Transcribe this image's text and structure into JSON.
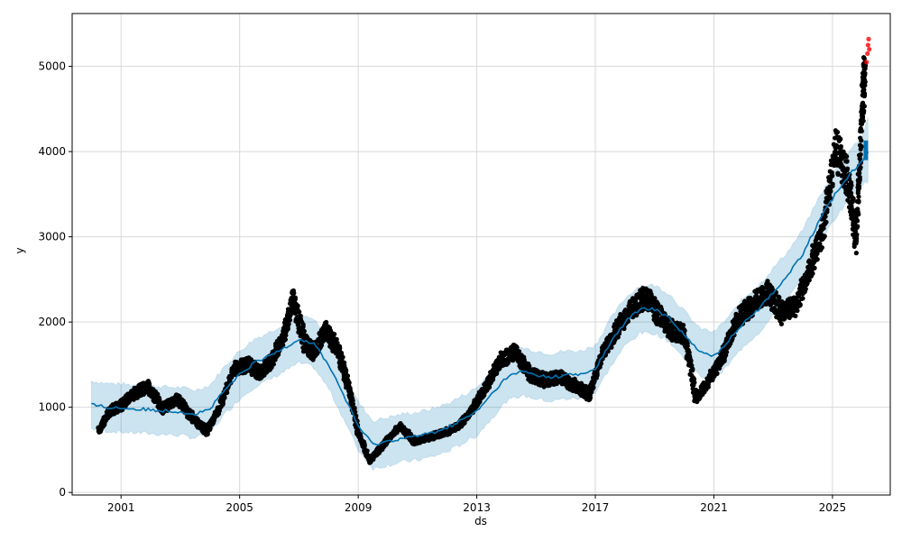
{
  "chart_data": {
    "type": "line",
    "title": "",
    "xlabel": "ds",
    "ylabel": "y",
    "xlim": [
      1999.35,
      2026.95
    ],
    "ylim": [
      -30,
      5620
    ],
    "x_ticks": [
      2001,
      2005,
      2009,
      2013,
      2017,
      2021,
      2025
    ],
    "x_tick_labels": [
      "2001",
      "2005",
      "2009",
      "2013",
      "2017",
      "2021",
      "2025"
    ],
    "y_ticks": [
      0,
      1000,
      2000,
      3000,
      4000,
      5000
    ],
    "y_tick_labels": [
      "0",
      "1000",
      "2000",
      "3000",
      "4000",
      "5000"
    ],
    "grid": true,
    "colors": {
      "observed": "#000000",
      "outliers": "#ff0000",
      "forecast": "#0072b2",
      "uncertainty": "#0072b2",
      "grid": "#d9d9d9"
    },
    "observed_series": {
      "name": "",
      "x": [
        2000.25,
        2000.6,
        2001.0,
        2001.4,
        2001.9,
        2002.4,
        2002.9,
        2003.4,
        2003.9,
        2004.3,
        2004.8,
        2005.3,
        2005.7,
        2006.1,
        2006.5,
        2006.8,
        2007.2,
        2007.5,
        2007.9,
        2008.3,
        2008.7,
        2009.0,
        2009.4,
        2009.9,
        2010.4,
        2010.9,
        2011.4,
        2011.9,
        2012.4,
        2012.9,
        2013.4,
        2013.8,
        2014.3,
        2014.8,
        2015.3,
        2015.8,
        2016.3,
        2016.8,
        2017.2,
        2017.7,
        2018.2,
        2018.7,
        2019.1,
        2019.6,
        2020.0,
        2020.4,
        2020.9,
        2021.3,
        2021.8,
        2022.3,
        2022.8,
        2023.3,
        2023.8,
        2024.3,
        2024.7,
        2025.1,
        2025.5,
        2025.8,
        2026.0,
        2026.1
      ],
      "y": [
        720,
        950,
        1020,
        1150,
        1250,
        980,
        1100,
        880,
        720,
        980,
        1450,
        1500,
        1400,
        1560,
        1850,
        2280,
        1750,
        1650,
        1900,
        1700,
        1200,
        700,
        380,
        580,
        780,
        600,
        650,
        700,
        780,
        1000,
        1300,
        1550,
        1650,
        1380,
        1320,
        1350,
        1250,
        1150,
        1600,
        1900,
        2150,
        2300,
        2100,
        1900,
        1850,
        1100,
        1350,
        1600,
        2050,
        2200,
        2350,
        2100,
        2200,
        2700,
        3100,
        4050,
        3700,
        3000,
        4500,
        5000
      ]
    },
    "outlier_points": {
      "x": [
        2026.15,
        2026.18,
        2026.2,
        2026.22,
        2026.24
      ],
      "y": [
        5050,
        5150,
        5250,
        5320,
        5200
      ]
    },
    "forecast_series": {
      "name": "",
      "x": [
        2000.0,
        2000.5,
        2001.0,
        2001.5,
        2002.0,
        2002.5,
        2003.0,
        2003.5,
        2004.0,
        2004.5,
        2005.0,
        2005.5,
        2006.0,
        2006.5,
        2007.0,
        2007.5,
        2008.0,
        2008.5,
        2009.0,
        2009.5,
        2010.0,
        2010.5,
        2011.0,
        2011.5,
        2012.0,
        2012.5,
        2013.0,
        2013.5,
        2014.0,
        2014.5,
        2015.0,
        2015.5,
        2016.0,
        2016.5,
        2017.0,
        2017.5,
        2018.0,
        2018.5,
        2019.0,
        2019.5,
        2020.0,
        2020.5,
        2021.0,
        2021.5,
        2022.0,
        2022.5,
        2023.0,
        2023.5,
        2024.0,
        2024.5,
        2025.0,
        2025.5,
        2026.0,
        2026.2
      ],
      "y": [
        1030,
        1000,
        990,
        980,
        970,
        960,
        950,
        920,
        980,
        1200,
        1380,
        1520,
        1600,
        1700,
        1800,
        1750,
        1500,
        1150,
        780,
        560,
        600,
        640,
        660,
        700,
        760,
        850,
        950,
        1150,
        1350,
        1420,
        1380,
        1350,
        1380,
        1380,
        1450,
        1750,
        2000,
        2150,
        2150,
        2050,
        1850,
        1650,
        1600,
        1780,
        2000,
        2150,
        2350,
        2550,
        2800,
        3150,
        3450,
        3700,
        3900,
        4000
      ]
    },
    "forecast_upper": [
      1310,
      1280,
      1270,
      1260,
      1250,
      1240,
      1230,
      1200,
      1260,
      1480,
      1660,
      1800,
      1880,
      1980,
      2080,
      2030,
      1780,
      1430,
      1060,
      840,
      880,
      920,
      940,
      980,
      1040,
      1130,
      1230,
      1430,
      1630,
      1700,
      1660,
      1630,
      1660,
      1660,
      1730,
      2030,
      2280,
      2430,
      2430,
      2330,
      2130,
      1930,
      1880,
      2060,
      2280,
      2430,
      2630,
      2830,
      3080,
      3430,
      3730,
      3980,
      4180,
      4400
    ],
    "forecast_lower": [
      750,
      720,
      710,
      700,
      690,
      680,
      670,
      640,
      700,
      920,
      1100,
      1240,
      1320,
      1420,
      1520,
      1470,
      1220,
      870,
      500,
      280,
      320,
      360,
      380,
      420,
      480,
      570,
      670,
      870,
      1070,
      1140,
      1100,
      1070,
      1100,
      1100,
      1170,
      1470,
      1720,
      1870,
      1870,
      1770,
      1570,
      1370,
      1320,
      1500,
      1720,
      1870,
      2070,
      2270,
      2520,
      2870,
      3170,
      3420,
      3620,
      3650
    ]
  }
}
